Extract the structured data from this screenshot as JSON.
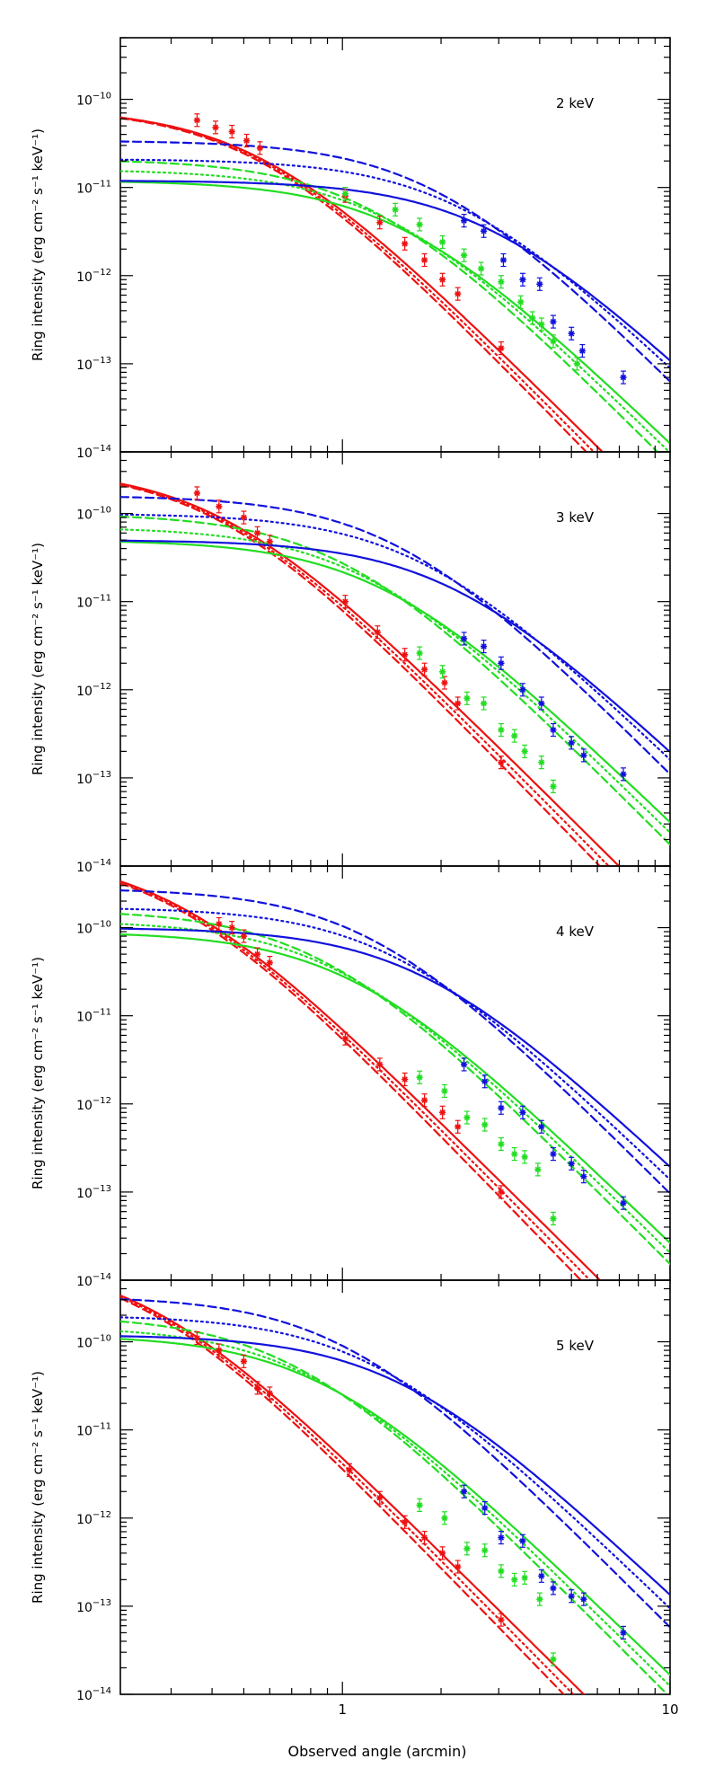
{
  "figure": {
    "shared_xlabel": "Observed angle (arcmin)"
  },
  "chart_data": [
    {
      "type": "line",
      "energy_label": "2 keV",
      "xlabel": "Observed angle (arcmin)",
      "ylabel": "Ring intensity (erg cm⁻² s⁻¹ keV⁻¹)",
      "x_scale": "log",
      "y_scale": "log",
      "xlim": [
        0.21,
        10
      ],
      "ylim": [
        1e-14,
        5e-10
      ],
      "x_ticks": [
        {
          "value": 1,
          "label": "1"
        },
        {
          "value": 10,
          "label": "10"
        }
      ],
      "y_ticks": [
        {
          "value": 1e-14,
          "base": "10",
          "exp": "−14"
        },
        {
          "value": 1e-13,
          "base": "10",
          "exp": "−13"
        },
        {
          "value": 1e-12,
          "base": "10",
          "exp": "−12"
        },
        {
          "value": 1e-11,
          "base": "10",
          "exp": "−11"
        },
        {
          "value": 1e-10,
          "base": "10",
          "exp": "−10"
        }
      ],
      "colors": {
        "red": "#ee1111",
        "green": "#22dd22",
        "blue": "#1111dd"
      },
      "model_curves": [
        {
          "color": "red",
          "style": "solid",
          "a": 8e-11,
          "theta_c": 0.55,
          "slope": 3.7
        },
        {
          "color": "red",
          "style": "dashed",
          "a": 8e-11,
          "theta_c": 0.54,
          "slope": 3.85
        },
        {
          "color": "red",
          "style": "dotted",
          "a": 8e-11,
          "theta_c": 0.545,
          "slope": 3.78
        },
        {
          "color": "green",
          "style": "solid",
          "a": 1.2e-11,
          "theta_c": 1.5,
          "slope": 3.6
        },
        {
          "color": "green",
          "style": "dashed",
          "a": 2.1e-11,
          "theta_c": 1.2,
          "slope": 3.75
        },
        {
          "color": "green",
          "style": "dotted",
          "a": 1.6e-11,
          "theta_c": 1.35,
          "slope": 3.68
        },
        {
          "color": "blue",
          "style": "solid",
          "a": 1.2e-11,
          "theta_c": 2.7,
          "slope": 3.5
        },
        {
          "color": "blue",
          "style": "dashed",
          "a": 3.4e-11,
          "theta_c": 1.9,
          "slope": 3.75
        },
        {
          "color": "blue",
          "style": "dotted",
          "a": 2.1e-11,
          "theta_c": 2.25,
          "slope": 3.6
        }
      ],
      "series": [
        {
          "color": "red",
          "points": [
            [
              0.36,
              5.8e-11
            ],
            [
              0.41,
              4.8e-11
            ],
            [
              0.46,
              4.3e-11
            ],
            [
              0.51,
              3.4e-11
            ],
            [
              0.56,
              2.8e-11
            ],
            [
              1.02,
              8e-12
            ],
            [
              1.3,
              4e-12
            ],
            [
              1.55,
              2.3e-12
            ],
            [
              1.78,
              1.5e-12
            ],
            [
              2.02,
              9e-13
            ],
            [
              2.25,
              6.2e-13
            ],
            [
              3.05,
              1.5e-13
            ]
          ]
        },
        {
          "color": "green",
          "points": [
            [
              1.02,
              8.5e-12
            ],
            [
              1.45,
              5.6e-12
            ],
            [
              1.72,
              3.8e-12
            ],
            [
              2.02,
              2.4e-12
            ],
            [
              2.35,
              1.7e-12
            ],
            [
              2.65,
              1.2e-12
            ],
            [
              3.05,
              8.5e-13
            ],
            [
              3.5,
              5e-13
            ],
            [
              3.8,
              3.3e-13
            ],
            [
              4.05,
              2.8e-13
            ],
            [
              4.4,
              1.8e-13
            ],
            [
              5.2,
              1e-13
            ]
          ]
        },
        {
          "color": "blue",
          "points": [
            [
              2.35,
              4.2e-12
            ],
            [
              2.7,
              3.2e-12
            ],
            [
              3.1,
              1.5e-12
            ],
            [
              3.55,
              9e-13
            ],
            [
              4.0,
              8e-13
            ],
            [
              4.4,
              3e-13
            ],
            [
              5.0,
              2.2e-13
            ],
            [
              5.4,
              1.4e-13
            ],
            [
              7.2,
              7e-14
            ]
          ]
        }
      ]
    },
    {
      "type": "line",
      "energy_label": "3 keV",
      "xlabel": "Observed angle (arcmin)",
      "ylabel": "Ring intensity (erg cm⁻² s⁻¹ keV⁻¹)",
      "x_scale": "log",
      "y_scale": "log",
      "xlim": [
        0.21,
        10
      ],
      "ylim": [
        1e-14,
        5e-10
      ],
      "x_ticks": [
        {
          "value": 1,
          "label": "1"
        },
        {
          "value": 10,
          "label": "10"
        }
      ],
      "y_ticks": [
        {
          "value": 1e-14,
          "base": "10",
          "exp": "−14"
        },
        {
          "value": 1e-13,
          "base": "10",
          "exp": "−13"
        },
        {
          "value": 1e-12,
          "base": "10",
          "exp": "−12"
        },
        {
          "value": 1e-11,
          "base": "10",
          "exp": "−11"
        },
        {
          "value": 1e-10,
          "base": "10",
          "exp": "−10"
        }
      ],
      "colors": {
        "red": "#ee1111",
        "green": "#22dd22",
        "blue": "#1111dd"
      },
      "model_curves": [
        {
          "color": "red",
          "style": "solid",
          "a": 3.3e-10,
          "theta_c": 0.42,
          "slope": 3.7
        },
        {
          "color": "red",
          "style": "dashed",
          "a": 3.3e-10,
          "theta_c": 0.41,
          "slope": 3.85
        },
        {
          "color": "red",
          "style": "dotted",
          "a": 3.3e-10,
          "theta_c": 0.415,
          "slope": 3.78
        },
        {
          "color": "green",
          "style": "solid",
          "a": 5e-11,
          "theta_c": 1.3,
          "slope": 3.6
        },
        {
          "color": "green",
          "style": "dashed",
          "a": 1e-10,
          "theta_c": 1.0,
          "slope": 3.75
        },
        {
          "color": "green",
          "style": "dotted",
          "a": 7e-11,
          "theta_c": 1.15,
          "slope": 3.68
        },
        {
          "color": "blue",
          "style": "solid",
          "a": 5e-11,
          "theta_c": 2.1,
          "slope": 3.5
        },
        {
          "color": "blue",
          "style": "dashed",
          "a": 1.6e-10,
          "theta_c": 1.45,
          "slope": 3.75
        },
        {
          "color": "blue",
          "style": "dotted",
          "a": 1e-10,
          "theta_c": 1.7,
          "slope": 3.6
        }
      ],
      "series": [
        {
          "color": "red",
          "points": [
            [
              0.36,
              1.7e-10
            ],
            [
              0.42,
              1.2e-10
            ],
            [
              0.5,
              9e-11
            ],
            [
              0.55,
              6e-11
            ],
            [
              0.6,
              4.8e-11
            ],
            [
              1.02,
              1e-11
            ],
            [
              1.28,
              4.5e-12
            ],
            [
              1.55,
              2.5e-12
            ],
            [
              1.78,
              1.7e-12
            ],
            [
              2.05,
              1.2e-12
            ],
            [
              2.25,
              7e-13
            ],
            [
              3.05,
              1.5e-13
            ]
          ]
        },
        {
          "color": "green",
          "points": [
            [
              1.72,
              2.6e-12
            ],
            [
              2.02,
              1.6e-12
            ],
            [
              2.4,
              8e-13
            ],
            [
              2.7,
              7e-13
            ],
            [
              3.05,
              3.5e-13
            ],
            [
              3.35,
              3e-13
            ],
            [
              3.6,
              2e-13
            ],
            [
              4.05,
              1.5e-13
            ],
            [
              4.4,
              8e-14
            ]
          ]
        },
        {
          "color": "blue",
          "points": [
            [
              2.35,
              3.8e-12
            ],
            [
              2.7,
              3.1e-12
            ],
            [
              3.05,
              2e-12
            ],
            [
              3.55,
              1e-12
            ],
            [
              4.05,
              7e-13
            ],
            [
              4.4,
              3.5e-13
            ],
            [
              5.0,
              2.5e-13
            ],
            [
              5.45,
              1.8e-13
            ],
            [
              7.2,
              1.1e-13
            ]
          ]
        }
      ]
    },
    {
      "type": "line",
      "energy_label": "4 keV",
      "xlabel": "Observed angle (arcmin)",
      "ylabel": "Ring intensity (erg cm⁻² s⁻¹ keV⁻¹)",
      "x_scale": "log",
      "y_scale": "log",
      "xlim": [
        0.21,
        10
      ],
      "ylim": [
        1e-14,
        5e-10
      ],
      "x_ticks": [
        {
          "value": 1,
          "label": "1"
        },
        {
          "value": 10,
          "label": "10"
        }
      ],
      "y_ticks": [
        {
          "value": 1e-14,
          "base": "10",
          "exp": "−14"
        },
        {
          "value": 1e-13,
          "base": "10",
          "exp": "−13"
        },
        {
          "value": 1e-12,
          "base": "10",
          "exp": "−12"
        },
        {
          "value": 1e-11,
          "base": "10",
          "exp": "−11"
        },
        {
          "value": 1e-10,
          "base": "10",
          "exp": "−10"
        }
      ],
      "colors": {
        "red": "#ee1111",
        "green": "#22dd22",
        "blue": "#1111dd"
      },
      "model_curves": [
        {
          "color": "red",
          "style": "solid",
          "a": 7e-10,
          "theta_c": 0.3,
          "slope": 3.7
        },
        {
          "color": "red",
          "style": "dashed",
          "a": 7e-10,
          "theta_c": 0.295,
          "slope": 3.85
        },
        {
          "color": "red",
          "style": "dotted",
          "a": 7e-10,
          "theta_c": 0.298,
          "slope": 3.78
        },
        {
          "color": "green",
          "style": "solid",
          "a": 9e-11,
          "theta_c": 1.05,
          "slope": 3.6
        },
        {
          "color": "green",
          "style": "dashed",
          "a": 1.6e-10,
          "theta_c": 0.85,
          "slope": 3.75
        },
        {
          "color": "green",
          "style": "dotted",
          "a": 1.2e-10,
          "theta_c": 0.95,
          "slope": 3.68
        },
        {
          "color": "blue",
          "style": "solid",
          "a": 1e-10,
          "theta_c": 1.7,
          "slope": 3.5
        },
        {
          "color": "blue",
          "style": "dashed",
          "a": 2.8e-10,
          "theta_c": 1.2,
          "slope": 3.75
        },
        {
          "color": "blue",
          "style": "dotted",
          "a": 1.7e-10,
          "theta_c": 1.4,
          "slope": 3.6
        }
      ],
      "series": [
        {
          "color": "red",
          "points": [
            [
              0.42,
              1.1e-10
            ],
            [
              0.46,
              1e-10
            ],
            [
              0.5,
              8e-11
            ],
            [
              0.55,
              5e-11
            ],
            [
              0.6,
              4e-11
            ],
            [
              1.02,
              5.5e-12
            ],
            [
              1.3,
              2.8e-12
            ],
            [
              1.55,
              1.9e-12
            ],
            [
              1.78,
              1.1e-12
            ],
            [
              2.02,
              8e-13
            ],
            [
              2.25,
              5.5e-13
            ],
            [
              3.05,
              1e-13
            ]
          ]
        },
        {
          "color": "green",
          "points": [
            [
              1.72,
              2e-12
            ],
            [
              2.05,
              1.4e-12
            ],
            [
              2.4,
              7e-13
            ],
            [
              2.72,
              5.8e-13
            ],
            [
              3.05,
              3.5e-13
            ],
            [
              3.35,
              2.7e-13
            ],
            [
              3.6,
              2.5e-13
            ],
            [
              3.95,
              1.8e-13
            ],
            [
              4.4,
              5e-14
            ]
          ]
        },
        {
          "color": "blue",
          "points": [
            [
              2.35,
              2.8e-12
            ],
            [
              2.72,
              1.8e-12
            ],
            [
              3.05,
              9e-13
            ],
            [
              3.55,
              8e-13
            ],
            [
              4.05,
              5.5e-13
            ],
            [
              4.4,
              2.7e-13
            ],
            [
              5.0,
              2.1e-13
            ],
            [
              5.45,
              1.5e-13
            ],
            [
              7.2,
              7.5e-14
            ]
          ]
        }
      ]
    },
    {
      "type": "line",
      "energy_label": "5 keV",
      "xlabel": "Observed angle (arcmin)",
      "ylabel": "Ring intensity (erg cm⁻² s⁻¹ keV⁻¹)",
      "x_scale": "log",
      "y_scale": "log",
      "xlim": [
        0.21,
        10
      ],
      "ylim": [
        1e-14,
        5e-10
      ],
      "x_ticks": [
        {
          "value": 1,
          "label": "1"
        },
        {
          "value": 10,
          "label": "10"
        }
      ],
      "y_ticks": [
        {
          "value": 1e-14,
          "base": "10",
          "exp": "−14"
        },
        {
          "value": 1e-13,
          "base": "10",
          "exp": "−13"
        },
        {
          "value": 1e-12,
          "base": "10",
          "exp": "−12"
        },
        {
          "value": 1e-11,
          "base": "10",
          "exp": "−11"
        },
        {
          "value": 1e-10,
          "base": "10",
          "exp": "−10"
        }
      ],
      "colors": {
        "red": "#ee1111",
        "green": "#22dd22",
        "blue": "#1111dd"
      },
      "model_curves": [
        {
          "color": "red",
          "style": "solid",
          "a": 9e-10,
          "theta_c": 0.25,
          "slope": 3.7
        },
        {
          "color": "red",
          "style": "dashed",
          "a": 9e-10,
          "theta_c": 0.245,
          "slope": 3.85
        },
        {
          "color": "red",
          "style": "dotted",
          "a": 9e-10,
          "theta_c": 0.248,
          "slope": 3.78
        },
        {
          "color": "green",
          "style": "solid",
          "a": 1.2e-10,
          "theta_c": 0.85,
          "slope": 3.6
        },
        {
          "color": "green",
          "style": "dashed",
          "a": 2e-10,
          "theta_c": 0.7,
          "slope": 3.75
        },
        {
          "color": "green",
          "style": "dotted",
          "a": 1.5e-10,
          "theta_c": 0.78,
          "slope": 3.68
        },
        {
          "color": "blue",
          "style": "solid",
          "a": 1.2e-10,
          "theta_c": 1.45,
          "slope": 3.5
        },
        {
          "color": "blue",
          "style": "dashed",
          "a": 3.3e-10,
          "theta_c": 1.0,
          "slope": 3.75
        },
        {
          "color": "blue",
          "style": "dotted",
          "a": 2e-10,
          "theta_c": 1.2,
          "slope": 3.6
        }
      ],
      "series": [
        {
          "color": "red",
          "points": [
            [
              0.36,
              1.1e-10
            ],
            [
              0.42,
              8e-11
            ],
            [
              0.5,
              6e-11
            ],
            [
              0.55,
              3e-11
            ],
            [
              0.6,
              2.6e-11
            ],
            [
              1.05,
              3.5e-12
            ],
            [
              1.3,
              1.7e-12
            ],
            [
              1.55,
              9e-13
            ],
            [
              1.78,
              6e-13
            ],
            [
              2.02,
              4e-13
            ],
            [
              2.25,
              2.8e-13
            ],
            [
              3.05,
              7e-14
            ]
          ]
        },
        {
          "color": "green",
          "points": [
            [
              1.72,
              1.4e-12
            ],
            [
              2.05,
              1e-12
            ],
            [
              2.4,
              4.5e-13
            ],
            [
              2.72,
              4.3e-13
            ],
            [
              3.05,
              2.5e-13
            ],
            [
              3.35,
              2e-13
            ],
            [
              3.6,
              2.1e-13
            ],
            [
              4.0,
              1.2e-13
            ],
            [
              4.4,
              2.5e-14
            ]
          ]
        },
        {
          "color": "blue",
          "points": [
            [
              2.35,
              2e-12
            ],
            [
              2.72,
              1.3e-12
            ],
            [
              3.05,
              6e-13
            ],
            [
              3.55,
              5.5e-13
            ],
            [
              4.05,
              2.2e-13
            ],
            [
              4.4,
              1.6e-13
            ],
            [
              5.0,
              1.3e-13
            ],
            [
              5.45,
              1.2e-13
            ],
            [
              7.2,
              5e-14
            ]
          ]
        }
      ]
    }
  ]
}
